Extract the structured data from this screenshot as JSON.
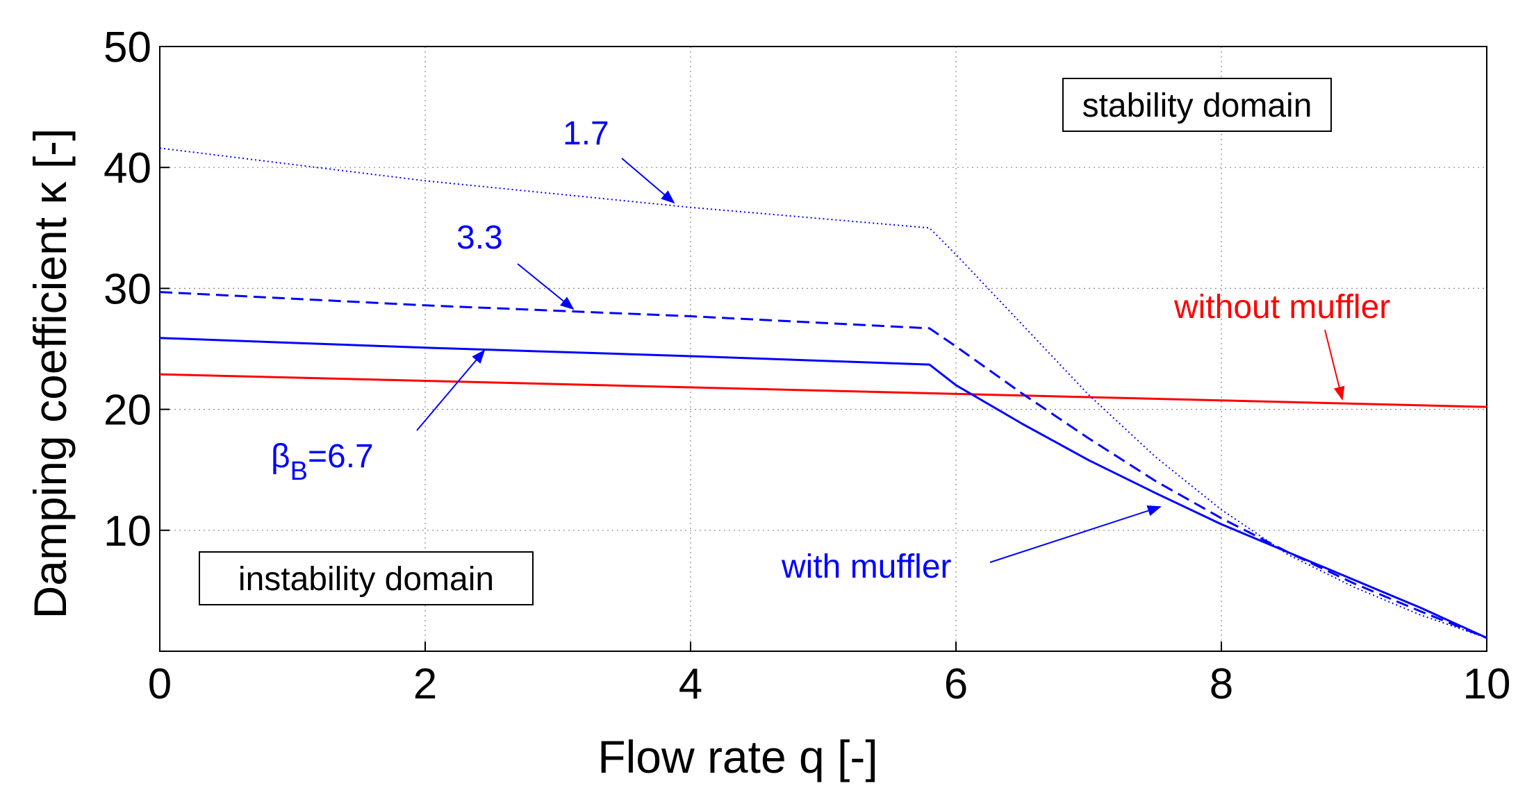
{
  "chart_data": {
    "type": "line",
    "title": "",
    "xlabel": "Flow rate q [-]",
    "ylabel": "Damping coefficient κ [-]",
    "xlim": [
      0,
      10
    ],
    "ylim": [
      0,
      50
    ],
    "xticks": [
      "0",
      "2",
      "4",
      "6",
      "8",
      "10"
    ],
    "yticks": [
      "10",
      "20",
      "30",
      "40",
      "50"
    ],
    "grid": true,
    "series": [
      {
        "name": "without muffler",
        "color": "#ff0000",
        "style": "solid",
        "x": [
          0,
          10
        ],
        "y": [
          22.9,
          20.2
        ]
      },
      {
        "name": "βB=6.7",
        "color": "#0000ff",
        "style": "solid",
        "x": [
          0,
          2,
          4,
          5.8,
          6.0,
          6.5,
          7.0,
          7.5,
          8.0,
          8.5,
          9.0,
          9.5,
          10.0
        ],
        "y": [
          25.9,
          25.1,
          24.4,
          23.7,
          22.0,
          18.8,
          15.8,
          13.1,
          10.5,
          8.2,
          5.9,
          3.6,
          1.1
        ]
      },
      {
        "name": "3.3",
        "color": "#0000ff",
        "style": "dashed",
        "x": [
          0,
          2,
          4,
          5.8,
          6.0,
          6.5,
          7.0,
          7.5,
          8.0,
          8.5,
          9.0,
          9.5,
          10.0
        ],
        "y": [
          29.7,
          28.6,
          27.7,
          26.7,
          25.2,
          21.3,
          17.6,
          14.1,
          11.0,
          8.2,
          5.6,
          3.3,
          1.1
        ]
      },
      {
        "name": "1.7",
        "color": "#0000ff",
        "style": "dotted",
        "x": [
          0,
          2,
          4,
          5.8,
          6.0,
          6.5,
          7.0,
          7.5,
          8.0,
          8.5,
          9.0,
          9.5,
          10.0
        ],
        "y": [
          41.6,
          38.9,
          36.7,
          35.0,
          32.8,
          27.0,
          21.2,
          16.1,
          11.7,
          8.0,
          5.3,
          3.0,
          1.1
        ]
      }
    ],
    "annotations": {
      "stability_domain": "stability domain",
      "instability_domain": "instability domain",
      "without_muffler": "without muffler",
      "with_muffler": "with muffler",
      "beta_prefix": "β",
      "beta_sub": "B",
      "beta_value": "=6.7",
      "label_3_3": "3.3",
      "label_1_7": "1.7"
    }
  }
}
